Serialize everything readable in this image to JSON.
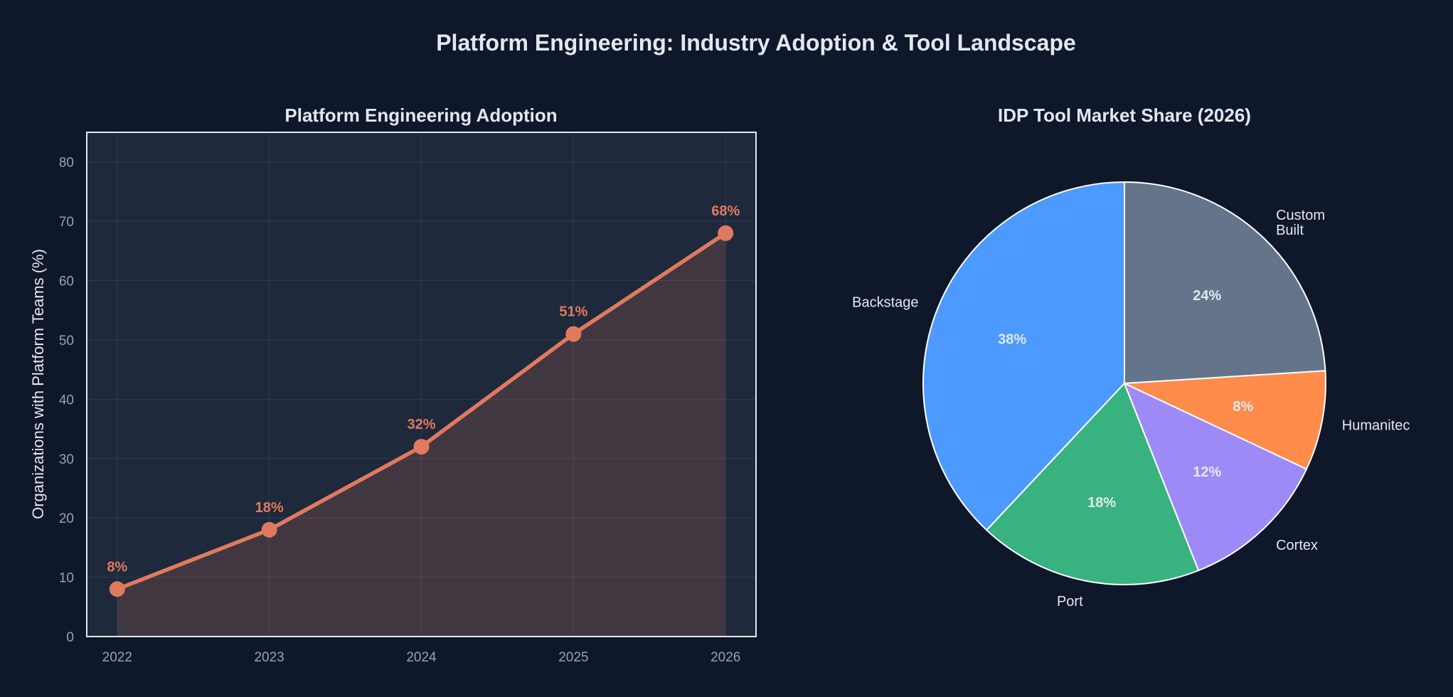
{
  "title": "Platform Engineering: Industry Adoption & Tool Landscape",
  "colors": {
    "background": "#0f172a",
    "axes_face": "#1e293b",
    "line": "#e07a5f",
    "text": "#e2e8f0",
    "tick": "#94a3b8"
  },
  "chart_data": [
    {
      "type": "line",
      "title": "Platform Engineering Adoption",
      "xlabel": "",
      "ylabel": "Organizations with Platform Teams (%)",
      "x": [
        "2022",
        "2023",
        "2024",
        "2025",
        "2026"
      ],
      "values": [
        8,
        18,
        32,
        51,
        68
      ],
      "data_labels": [
        "8%",
        "18%",
        "32%",
        "51%",
        "68%"
      ],
      "ylim": [
        0,
        85
      ],
      "yticks": [
        0,
        10,
        20,
        30,
        40,
        50,
        60,
        70,
        80
      ],
      "grid": true,
      "area_fill": true,
      "color": "#e07a5f"
    },
    {
      "type": "pie",
      "title": "IDP Tool Market Share (2026)",
      "labels": [
        "Backstage",
        "Port",
        "Cortex",
        "Humanitec",
        "Custom Built"
      ],
      "values": [
        38,
        18,
        12,
        8,
        24
      ],
      "pct_labels": [
        "38%",
        "18%",
        "12%",
        "8%",
        "24%"
      ],
      "colors": [
        "#4c9aff",
        "#38b27f",
        "#9d8af7",
        "#ff8c4b",
        "#64748b"
      ],
      "start_angle": 90,
      "direction": "counterclockwise"
    }
  ]
}
